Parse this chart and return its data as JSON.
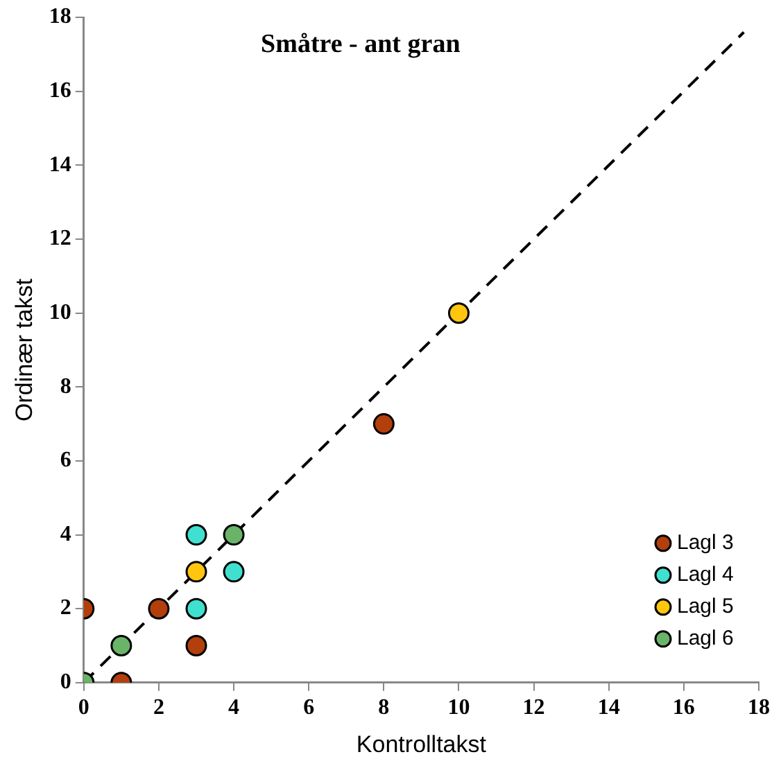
{
  "chart_data": {
    "type": "scatter",
    "title": "Småtre - ant gran",
    "xlabel": "Kontrolltakst",
    "ylabel": "Ordinær takst",
    "xlim": [
      0,
      18
    ],
    "ylim": [
      0,
      18
    ],
    "xticks": [
      0,
      2,
      4,
      6,
      8,
      10,
      12,
      14,
      16,
      18
    ],
    "yticks": [
      0,
      2,
      4,
      6,
      8,
      10,
      12,
      14,
      16,
      18
    ],
    "grid": false,
    "legend": "bottom right",
    "marker": "circle",
    "series": [
      {
        "name": "Lagl 3",
        "color": "#b33f0c",
        "x": [
          0,
          1,
          2,
          3,
          8
        ],
        "values": [
          2,
          0,
          2,
          1,
          7
        ]
      },
      {
        "name": "Lagl 4",
        "color": "#40e0d0",
        "x": [
          3,
          3,
          4
        ],
        "values": [
          4,
          2,
          3
        ]
      },
      {
        "name": "Lagl 5",
        "color": "#ffc50f",
        "x": [
          3,
          10
        ],
        "values": [
          3,
          10
        ]
      },
      {
        "name": "Lagl 6",
        "color": "#6ab46a",
        "x": [
          0,
          1,
          4
        ],
        "values": [
          0,
          1,
          4
        ]
      },
      {
        "type": "line",
        "color": "#000000",
        "x": [
          0,
          17.6
        ],
        "values": [
          0,
          17.6
        ],
        "line_style": "dashed",
        "marker": "none"
      }
    ]
  }
}
